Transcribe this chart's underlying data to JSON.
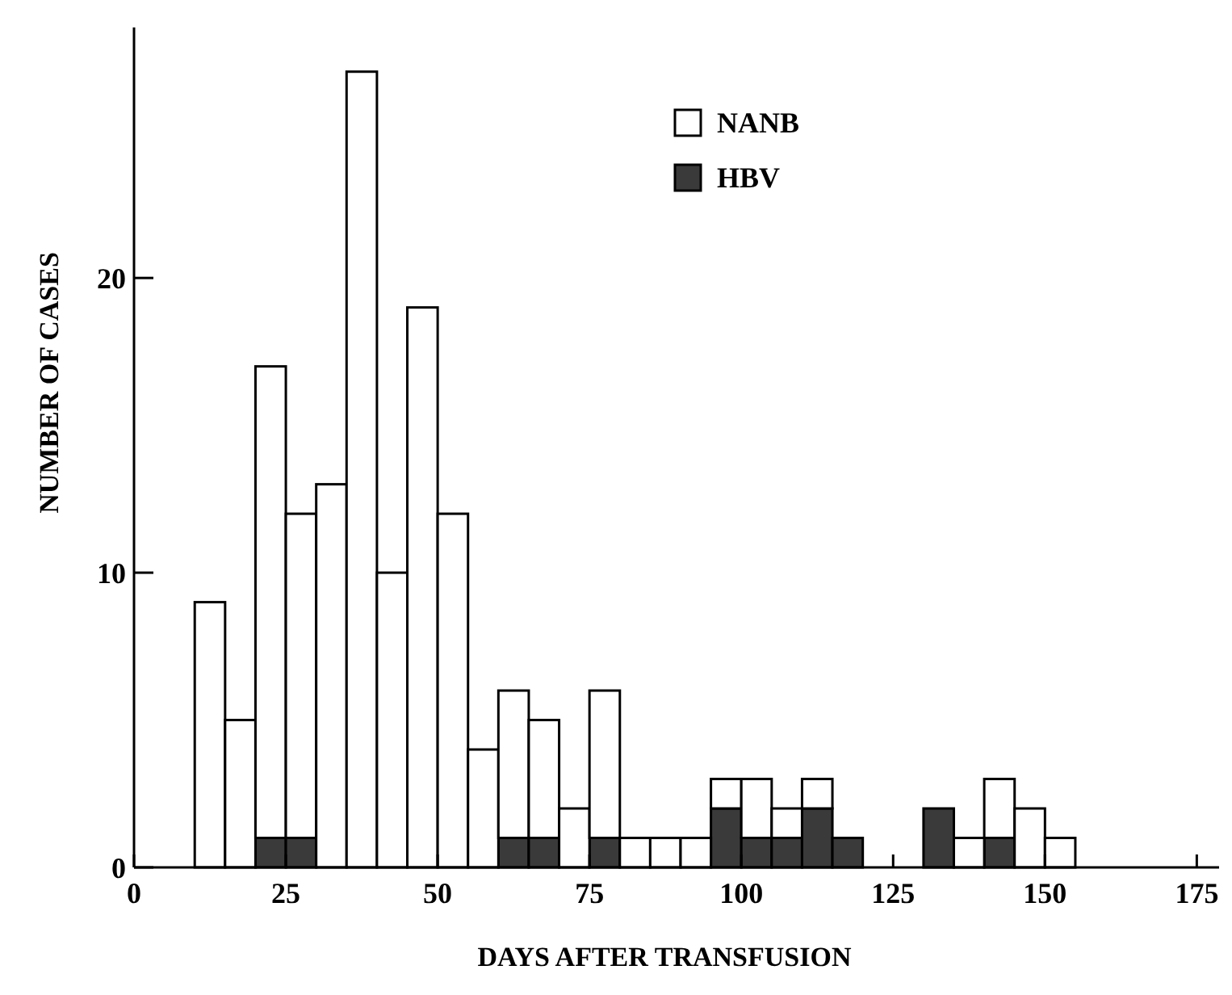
{
  "chart_data": {
    "type": "bar",
    "xlabel": "DAYS AFTER TRANSFUSION",
    "ylabel": "NUMBER OF CASES",
    "x": [
      12.5,
      17.5,
      22.5,
      27.5,
      32.5,
      37.5,
      42.5,
      47.5,
      52.5,
      57.5,
      62.5,
      67.5,
      72.5,
      77.5,
      82.5,
      87.5,
      92.5,
      97.5,
      102.5,
      107.5,
      112.5,
      117.5,
      122.5,
      127.5,
      132.5,
      137.5,
      142.5,
      147.5,
      152.5
    ],
    "stacked": true,
    "series": [
      {
        "name": "HBV",
        "color": "#3a3a3a",
        "values": [
          0,
          0,
          1,
          1,
          0,
          0,
          0,
          0,
          0,
          0,
          1,
          1,
          0,
          1,
          0,
          0,
          0,
          2,
          1,
          1,
          2,
          1,
          0,
          0,
          2,
          0,
          1,
          0,
          0
        ]
      },
      {
        "name": "NANB",
        "color": "#ffffff",
        "values": [
          9,
          5,
          16,
          11,
          13,
          27,
          10,
          19,
          12,
          4,
          5,
          4,
          2,
          5,
          1,
          1,
          1,
          1,
          2,
          1,
          1,
          0,
          0,
          0,
          0,
          1,
          2,
          2,
          1
        ]
      }
    ],
    "xlim": [
      0,
      180
    ],
    "xticks": [
      0,
      25,
      50,
      75,
      100,
      125,
      150,
      175
    ],
    "ylim": [
      0,
      28.5
    ],
    "yticks": [
      0,
      10,
      20
    ],
    "grid": false,
    "legend": "top"
  }
}
